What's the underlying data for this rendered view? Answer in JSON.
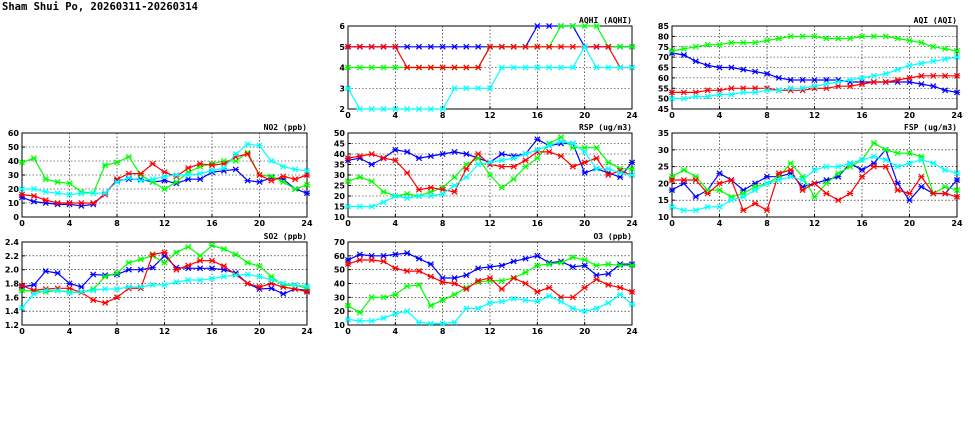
{
  "page": {
    "title": "Sham Shui Po, 20260311-20260314"
  },
  "chart_data": [
    {
      "id": "aqhi",
      "type": "line",
      "title": "AQHI (AQHI)",
      "xlim": [
        0,
        24
      ],
      "xticks": [
        0,
        4,
        8,
        12,
        16,
        20,
        24
      ],
      "ylim": [
        2,
        6
      ],
      "yticks": [
        2,
        3,
        4,
        5,
        6
      ],
      "grid": true,
      "series": [
        {
          "color": "#0000ff",
          "values": [
            5,
            5,
            5,
            5,
            5,
            5,
            5,
            5,
            5,
            5,
            5,
            5,
            5,
            5,
            5,
            5,
            6,
            6,
            6,
            6,
            5,
            5,
            5,
            5,
            5
          ]
        },
        {
          "color": "#00ff00",
          "values": [
            4,
            4,
            4,
            4,
            4,
            4,
            4,
            4,
            4,
            4,
            4,
            4,
            5,
            5,
            5,
            5,
            5,
            5,
            6,
            6,
            6,
            6,
            5,
            5,
            5
          ]
        },
        {
          "color": "#ff0000",
          "values": [
            5,
            5,
            5,
            5,
            5,
            4,
            4,
            4,
            4,
            4,
            4,
            4,
            5,
            5,
            5,
            5,
            5,
            5,
            5,
            5,
            5,
            5,
            5,
            4,
            4
          ]
        },
        {
          "color": "#00ffff",
          "values": [
            3,
            2,
            2,
            2,
            2,
            2,
            2,
            2,
            2,
            3,
            3,
            3,
            3,
            4,
            4,
            4,
            4,
            4,
            4,
            4,
            5,
            4,
            4,
            4,
            4
          ]
        }
      ]
    },
    {
      "id": "aqi",
      "type": "line",
      "title": "AQI (AQI)",
      "xlim": [
        0,
        24
      ],
      "xticks": [
        0,
        4,
        8,
        12,
        16,
        20,
        24
      ],
      "ylim": [
        45,
        85
      ],
      "yticks": [
        45,
        50,
        55,
        60,
        65,
        70,
        75,
        80,
        85
      ],
      "grid": true,
      "series": [
        {
          "color": "#0000ff",
          "values": [
            72,
            71,
            68,
            66,
            65,
            65,
            64,
            63,
            62,
            60,
            59,
            59,
            59,
            59,
            59,
            58,
            58,
            58,
            58,
            58,
            58,
            57,
            56,
            54,
            53
          ]
        },
        {
          "color": "#00ff00",
          "values": [
            73,
            74,
            75,
            76,
            76,
            77,
            77,
            77,
            78,
            79,
            80,
            80,
            80,
            79,
            79,
            79,
            80,
            80,
            80,
            79,
            78,
            77,
            75,
            74,
            73
          ]
        },
        {
          "color": "#ff0000",
          "values": [
            53,
            53,
            53,
            54,
            54,
            55,
            55,
            55,
            55,
            54,
            54,
            54,
            55,
            55,
            56,
            56,
            57,
            58,
            58,
            59,
            60,
            61,
            61,
            61,
            61
          ]
        },
        {
          "color": "#00ffff",
          "values": [
            50,
            50,
            51,
            51,
            52,
            52,
            53,
            53,
            54,
            54,
            55,
            55,
            56,
            57,
            58,
            59,
            60,
            61,
            62,
            64,
            66,
            67,
            68,
            69,
            70
          ]
        }
      ]
    },
    {
      "id": "no2",
      "type": "line",
      "title": "NO2 (ppb)",
      "xlim": [
        0,
        24
      ],
      "xticks": [
        0,
        4,
        8,
        12,
        16,
        20,
        24
      ],
      "ylim": [
        0,
        60
      ],
      "yticks": [
        0,
        10,
        20,
        30,
        40,
        50,
        60
      ],
      "grid": true,
      "series": [
        {
          "color": "#0000ff",
          "values": [
            14,
            11,
            10,
            9,
            9,
            8,
            9,
            17,
            26,
            27,
            27,
            25,
            26,
            24,
            27,
            27,
            32,
            33,
            34,
            26,
            25,
            28,
            27,
            20,
            17
          ]
        },
        {
          "color": "#00ff00",
          "values": [
            39,
            42,
            27,
            25,
            24,
            18,
            17,
            37,
            39,
            43,
            30,
            25,
            20,
            25,
            32,
            36,
            38,
            40,
            40,
            46,
            30,
            29,
            25,
            20,
            23
          ]
        },
        {
          "color": "#ff0000",
          "values": [
            16,
            15,
            12,
            10,
            10,
            10,
            10,
            16,
            27,
            31,
            31,
            38,
            32,
            29,
            35,
            38,
            37,
            38,
            43,
            45,
            30,
            26,
            29,
            27,
            30
          ]
        },
        {
          "color": "#00ffff",
          "values": [
            20,
            20,
            18,
            17,
            16,
            17,
            17,
            17,
            25,
            28,
            26,
            27,
            29,
            30,
            30,
            31,
            33,
            35,
            45,
            52,
            51,
            40,
            36,
            34,
            33
          ]
        }
      ]
    },
    {
      "id": "rsp",
      "type": "line",
      "title": "RSP (ug/m3)",
      "xlim": [
        0,
        24
      ],
      "xticks": [
        0,
        4,
        8,
        12,
        16,
        20,
        24
      ],
      "ylim": [
        10,
        50
      ],
      "yticks": [
        10,
        15,
        20,
        25,
        30,
        35,
        40,
        45,
        50
      ],
      "grid": true,
      "series": [
        {
          "color": "#0000ff",
          "values": [
            37,
            38,
            35,
            38,
            42,
            41,
            38,
            39,
            40,
            41,
            40,
            38,
            36,
            40,
            39,
            40,
            47,
            44,
            45,
            45,
            31,
            33,
            31,
            29,
            36
          ]
        },
        {
          "color": "#00ff00",
          "values": [
            27,
            29,
            27,
            22,
            20,
            21,
            20,
            22,
            24,
            29,
            35,
            38,
            30,
            24,
            28,
            34,
            38,
            45,
            48,
            43,
            43,
            43,
            36,
            33,
            33
          ]
        },
        {
          "color": "#ff0000",
          "values": [
            38,
            39,
            40,
            38,
            37,
            31,
            23,
            24,
            23,
            22,
            33,
            40,
            35,
            34,
            34,
            37,
            41,
            41,
            39,
            34,
            36,
            38,
            30,
            32,
            30
          ]
        },
        {
          "color": "#00ffff",
          "values": [
            15,
            15,
            15,
            17,
            20,
            19,
            20,
            20,
            21,
            25,
            29,
            35,
            36,
            37,
            38,
            40,
            42,
            44,
            46,
            45,
            41,
            33,
            33,
            31,
            30
          ]
        }
      ]
    },
    {
      "id": "fsp",
      "type": "line",
      "title": "FSP (ug/m3)",
      "xlim": [
        0,
        24
      ],
      "xticks": [
        0,
        4,
        8,
        12,
        16,
        20,
        24
      ],
      "ylim": [
        10,
        35
      ],
      "yticks": [
        10,
        15,
        20,
        25,
        30,
        35
      ],
      "grid": true,
      "series": [
        {
          "color": "#0000ff",
          "values": [
            18,
            20,
            16,
            18,
            23,
            21,
            18,
            20,
            22,
            22,
            23,
            19,
            20,
            21,
            22,
            26,
            24,
            26,
            30,
            20,
            15,
            19,
            17,
            17,
            21
          ]
        },
        {
          "color": "#00ff00",
          "values": [
            22,
            24,
            22,
            18,
            18,
            16,
            17,
            19,
            20,
            22,
            26,
            22,
            16,
            20,
            23,
            25,
            27,
            32,
            30,
            29,
            29,
            28,
            17,
            19,
            18
          ]
        },
        {
          "color": "#ff0000",
          "values": [
            21,
            21,
            21,
            17,
            20,
            21,
            12,
            14,
            12,
            23,
            24,
            18,
            20,
            17,
            15,
            17,
            22,
            25,
            25,
            18,
            17,
            22,
            17,
            17,
            16
          ]
        },
        {
          "color": "#00ffff",
          "values": [
            13,
            12,
            12,
            13,
            13,
            15,
            16,
            18,
            20,
            21,
            22,
            21,
            24,
            25,
            25,
            26,
            27,
            28,
            27,
            25,
            26,
            27,
            26,
            24,
            23
          ]
        }
      ]
    },
    {
      "id": "so2",
      "type": "line",
      "title": "SO2 (ppb)",
      "xlim": [
        0,
        24
      ],
      "xticks": [
        0,
        4,
        8,
        12,
        16,
        20,
        24
      ],
      "ylim": [
        1.2,
        2.4
      ],
      "yticks": [
        1.2,
        1.4,
        1.6,
        1.8,
        2.0,
        2.2,
        2.4
      ],
      "grid": true,
      "series": [
        {
          "color": "#0000ff",
          "values": [
            1.75,
            1.78,
            1.98,
            1.95,
            1.8,
            1.75,
            1.93,
            1.92,
            1.93,
            2.0,
            2.0,
            2.03,
            2.2,
            2.03,
            2.02,
            2.02,
            2.02,
            2.0,
            1.95,
            1.8,
            1.72,
            1.73,
            1.65,
            1.72,
            1.7
          ]
        },
        {
          "color": "#00ff00",
          "values": [
            1.7,
            1.69,
            1.68,
            1.7,
            1.68,
            1.67,
            1.72,
            1.9,
            1.95,
            2.1,
            2.15,
            2.2,
            2.1,
            2.25,
            2.33,
            2.2,
            2.35,
            2.3,
            2.22,
            2.1,
            2.05,
            1.9,
            1.77,
            1.78,
            1.73
          ]
        },
        {
          "color": "#ff0000",
          "values": [
            1.77,
            1.7,
            1.72,
            1.73,
            1.73,
            1.67,
            1.56,
            1.52,
            1.6,
            1.73,
            1.73,
            2.22,
            2.25,
            2.0,
            2.06,
            2.13,
            2.13,
            2.05,
            1.93,
            1.8,
            1.75,
            1.8,
            1.75,
            1.72,
            1.68
          ]
        },
        {
          "color": "#00ffff",
          "values": [
            1.45,
            1.65,
            1.7,
            1.7,
            1.67,
            1.68,
            1.7,
            1.72,
            1.72,
            1.75,
            1.75,
            1.78,
            1.78,
            1.82,
            1.85,
            1.85,
            1.87,
            1.9,
            1.92,
            1.93,
            1.9,
            1.85,
            1.8,
            1.78,
            1.76
          ]
        }
      ]
    },
    {
      "id": "o3",
      "type": "line",
      "title": "O3 (ppb)",
      "xlim": [
        0,
        24
      ],
      "xticks": [
        0,
        4,
        8,
        12,
        16,
        20,
        24
      ],
      "ylim": [
        10,
        70
      ],
      "yticks": [
        10,
        20,
        30,
        40,
        50,
        60,
        70
      ],
      "grid": true,
      "series": [
        {
          "color": "#0000ff",
          "values": [
            57,
            61,
            60,
            60,
            61,
            62,
            58,
            54,
            44,
            44,
            46,
            51,
            52,
            53,
            56,
            58,
            60,
            55,
            56,
            52,
            53,
            46,
            47,
            54,
            54
          ]
        },
        {
          "color": "#00ff00",
          "values": [
            24,
            19,
            30,
            30,
            32,
            38,
            39,
            24,
            28,
            32,
            37,
            41,
            42,
            42,
            44,
            48,
            53,
            54,
            55,
            59,
            57,
            53,
            54,
            53,
            53
          ]
        },
        {
          "color": "#ff0000",
          "values": [
            54,
            57,
            57,
            56,
            51,
            49,
            49,
            45,
            41,
            40,
            36,
            42,
            44,
            36,
            44,
            40,
            34,
            37,
            30,
            30,
            37,
            43,
            39,
            37,
            34
          ]
        },
        {
          "color": "#00ffff",
          "values": [
            14,
            13,
            13,
            15,
            18,
            20,
            12,
            11,
            11,
            12,
            22,
            22,
            26,
            27,
            29,
            28,
            27,
            31,
            27,
            22,
            20,
            22,
            26,
            32,
            25
          ]
        }
      ]
    }
  ]
}
